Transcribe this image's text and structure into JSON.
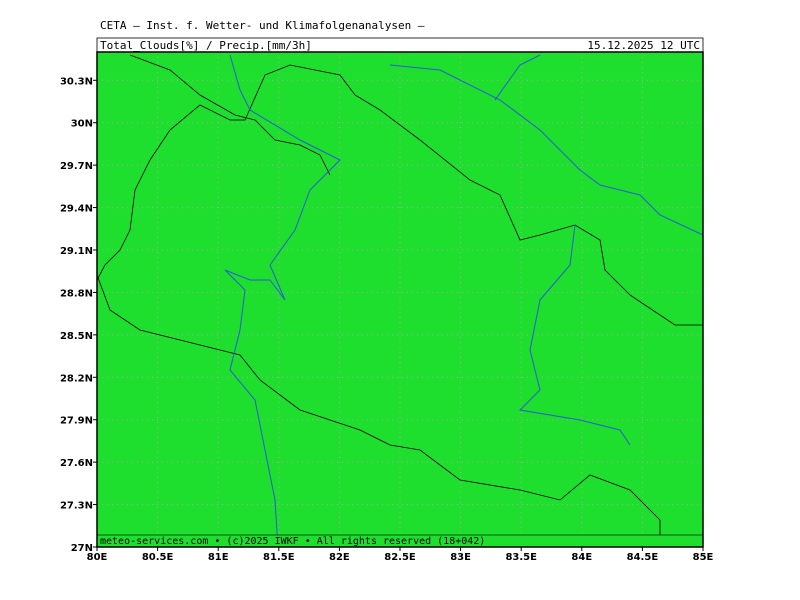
{
  "header": {
    "title": "CETA — Inst. f. Wetter- und Klimafolgenanalysen —",
    "field": "Total_Clouds[%] / Precip.[mm/3h]",
    "time": "15.12.2025 12 UTC"
  },
  "footer": "meteo-services.com • (c)2025 IWKF • All rights reserved (18+042)",
  "map": {
    "xlim": [
      80,
      85
    ],
    "ylim": [
      27,
      30.5
    ],
    "xticks": [
      {
        "value": 80,
        "label": "80E"
      },
      {
        "value": 80.5,
        "label": "80.5E"
      },
      {
        "value": 81,
        "label": "81E"
      },
      {
        "value": 81.5,
        "label": "81.5E"
      },
      {
        "value": 82,
        "label": "82E"
      },
      {
        "value": 82.5,
        "label": "82.5E"
      },
      {
        "value": 83,
        "label": "83E"
      },
      {
        "value": 83.5,
        "label": "83.5E"
      },
      {
        "value": 84,
        "label": "84E"
      },
      {
        "value": 84.5,
        "label": "84.5E"
      },
      {
        "value": 85,
        "label": "85E"
      }
    ],
    "yticks": [
      {
        "value": 27,
        "label": "27N"
      },
      {
        "value": 27.3,
        "label": "27.3N"
      },
      {
        "value": 27.6,
        "label": "27.6N"
      },
      {
        "value": 27.9,
        "label": "27.9N"
      },
      {
        "value": 28.2,
        "label": "28.2N"
      },
      {
        "value": 28.5,
        "label": "28.5N"
      },
      {
        "value": 28.8,
        "label": "28.8N"
      },
      {
        "value": 29.1,
        "label": "29.1N"
      },
      {
        "value": 29.4,
        "label": "29.4N"
      },
      {
        "value": 29.7,
        "label": "29.7N"
      },
      {
        "value": 30,
        "label": "30N"
      },
      {
        "value": 30.3,
        "label": "30.3N"
      }
    ]
  }
}
